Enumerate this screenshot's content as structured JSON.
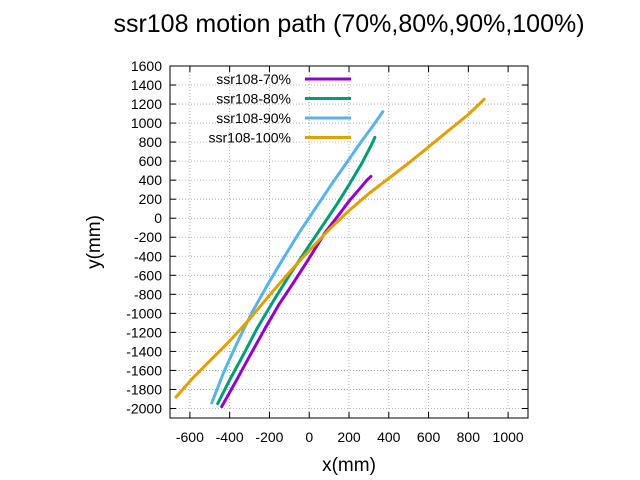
{
  "chart_data": {
    "type": "line",
    "title": "ssr108 motion path (70%,80%,90%,100%)",
    "xlabel": "x(mm)",
    "ylabel": "y(mm)",
    "xlim": [
      -700,
      1100
    ],
    "ylim": [
      -2100,
      1600
    ],
    "xticks": [
      -600,
      -400,
      -200,
      0,
      200,
      400,
      600,
      800,
      1000
    ],
    "yticks": [
      1600,
      1400,
      1200,
      1000,
      800,
      600,
      400,
      200,
      0,
      -200,
      -400,
      -600,
      -800,
      -1000,
      -1200,
      -1400,
      -1600,
      -1800,
      -2000
    ],
    "grid": true,
    "legend_position": "top-left",
    "series": [
      {
        "name": "ssr108-70%",
        "color": "#9400d3",
        "x": [
          -440,
          -370,
          -300,
          -220,
          -150,
          -80,
          0,
          80,
          150,
          200,
          250,
          290,
          310
        ],
        "y": [
          -1980,
          -1720,
          -1450,
          -1150,
          -900,
          -680,
          -420,
          -150,
          40,
          180,
          300,
          400,
          440
        ]
      },
      {
        "name": "ssr108-80%",
        "color": "#009e73",
        "x": [
          -460,
          -400,
          -330,
          -260,
          -180,
          -100,
          -20,
          60,
          140,
          200,
          260,
          310,
          330
        ],
        "y": [
          -1950,
          -1700,
          -1430,
          -1150,
          -870,
          -600,
          -350,
          -100,
          150,
          350,
          560,
          760,
          850
        ]
      },
      {
        "name": "ssr108-90%",
        "color": "#56b4e9",
        "x": [
          -490,
          -430,
          -360,
          -290,
          -210,
          -130,
          -50,
          30,
          110,
          190,
          260,
          320,
          370
        ],
        "y": [
          -1940,
          -1620,
          -1300,
          -1000,
          -700,
          -420,
          -150,
          100,
          350,
          590,
          800,
          970,
          1120
        ]
      },
      {
        "name": "ssr108-100%",
        "color": "#e69f00",
        "x": [
          -670,
          -590,
          -500,
          -400,
          -300,
          -200,
          -100,
          0,
          100,
          200,
          300,
          400,
          500,
          600,
          700,
          800,
          880
        ],
        "y": [
          -1880,
          -1690,
          -1500,
          -1290,
          -1060,
          -810,
          -570,
          -340,
          -120,
          80,
          260,
          420,
          580,
          750,
          920,
          1090,
          1250
        ]
      }
    ]
  }
}
